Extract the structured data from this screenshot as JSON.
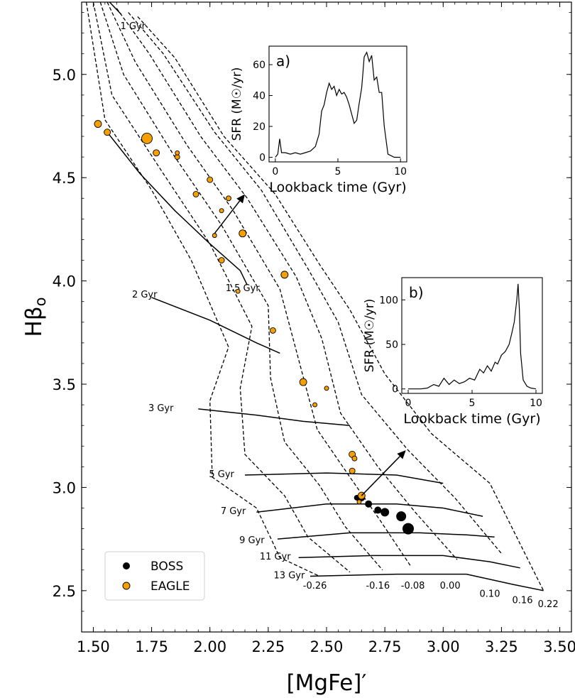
{
  "chart_data": [
    {
      "type": "line",
      "xlabel": "[MgFe]′",
      "ylabel": "Hβo",
      "xlim": [
        1.45,
        3.55
      ],
      "ylim": [
        2.3,
        5.35
      ],
      "x_ticks": [
        "1.50",
        "1.75",
        "2.00",
        "2.25",
        "2.50",
        "2.75",
        "3.00",
        "3.25",
        "3.50"
      ],
      "y_ticks": [
        "2.5",
        "3.0",
        "3.5",
        "4.0",
        "4.5",
        "5.0"
      ],
      "grid": false,
      "legend": {
        "position": "bottom-left",
        "entries": [
          "BOSS",
          "EAGLE"
        ]
      },
      "age_labels": [
        {
          "label": "1 Gyr",
          "x": 1.67,
          "y": 5.22
        },
        {
          "label": "1.5 Gyr",
          "x": 2.14,
          "y": 3.95
        },
        {
          "label": "2 Gyr",
          "x": 1.72,
          "y": 3.92
        },
        {
          "label": "3 Gyr",
          "x": 1.79,
          "y": 3.37
        },
        {
          "label": "5 Gyr",
          "x": 2.05,
          "y": 3.05
        },
        {
          "label": "7 Gyr",
          "x": 2.1,
          "y": 2.87
        },
        {
          "label": "9 Gyr",
          "x": 2.18,
          "y": 2.73
        },
        {
          "label": "11 Gyr",
          "x": 2.28,
          "y": 2.65
        },
        {
          "label": "13 Gyr",
          "x": 2.34,
          "y": 2.56
        }
      ],
      "metallicity_labels": [
        {
          "label": "-0.26",
          "x": 2.45,
          "y": 2.51
        },
        {
          "label": "-0.16",
          "x": 2.72,
          "y": 2.51
        },
        {
          "label": "-0.08",
          "x": 2.87,
          "y": 2.51
        },
        {
          "label": "0.00",
          "x": 3.03,
          "y": 2.51
        },
        {
          "label": "0.10",
          "x": 3.2,
          "y": 2.47
        },
        {
          "label": "0.16",
          "x": 3.34,
          "y": 2.44
        },
        {
          "label": "0.22",
          "x": 3.45,
          "y": 2.42
        }
      ],
      "isochrones": [
        {
          "age": "1.5 Gyr",
          "points": [
            [
              1.56,
              4.72
            ],
            [
              1.7,
              4.52
            ],
            [
              1.85,
              4.34
            ],
            [
              2.0,
              4.18
            ],
            [
              2.13,
              4.05
            ],
            [
              2.16,
              3.98
            ]
          ]
        },
        {
          "age": "2 Gyr",
          "points": [
            [
              1.75,
              3.92
            ],
            [
              2.0,
              3.81
            ],
            [
              2.2,
              3.7
            ],
            [
              2.3,
              3.65
            ]
          ]
        },
        {
          "age": "3 Gyr",
          "points": [
            [
              1.95,
              3.38
            ],
            [
              2.2,
              3.35
            ],
            [
              2.4,
              3.32
            ],
            [
              2.6,
              3.3
            ]
          ]
        },
        {
          "age": "5 Gyr",
          "points": [
            [
              2.15,
              3.06
            ],
            [
              2.5,
              3.07
            ],
            [
              2.8,
              3.06
            ],
            [
              3.0,
              3.02
            ]
          ]
        },
        {
          "age": "7 Gyr",
          "points": [
            [
              2.2,
              2.88
            ],
            [
              2.5,
              2.92
            ],
            [
              2.8,
              2.92
            ],
            [
              3.0,
              2.9
            ],
            [
              3.17,
              2.86
            ]
          ]
        },
        {
          "age": "9 Gyr",
          "points": [
            [
              2.29,
              2.75
            ],
            [
              2.6,
              2.78
            ],
            [
              2.9,
              2.78
            ],
            [
              3.1,
              2.77
            ],
            [
              3.22,
              2.76
            ]
          ]
        },
        {
          "age": "11 Gyr",
          "points": [
            [
              2.38,
              2.66
            ],
            [
              2.7,
              2.67
            ],
            [
              3.0,
              2.67
            ],
            [
              3.2,
              2.64
            ],
            [
              3.33,
              2.61
            ]
          ]
        },
        {
          "age": "13 Gyr",
          "points": [
            [
              2.43,
              2.57
            ],
            [
              2.8,
              2.58
            ],
            [
              3.1,
              2.58
            ],
            [
              3.3,
              2.53
            ],
            [
              3.43,
              2.5
            ]
          ]
        },
        {
          "age": "1 Gyr",
          "points": [
            [
              1.57,
              5.35
            ],
            [
              1.62,
              5.29
            ]
          ]
        }
      ],
      "metallicity_tracks": [
        {
          "z": "-0.26",
          "points": [
            [
              1.47,
              5.35
            ],
            [
              1.55,
              4.78
            ],
            [
              1.75,
              4.44
            ],
            [
              1.92,
              4.1
            ],
            [
              2.08,
              3.68
            ],
            [
              2.0,
              3.42
            ],
            [
              2.01,
              3.05
            ],
            [
              2.2,
              2.9
            ],
            [
              2.3,
              2.66
            ],
            [
              2.47,
              2.57
            ]
          ]
        },
        {
          "z": "-0.16",
          "points": [
            [
              1.5,
              5.35
            ],
            [
              1.58,
              4.9
            ],
            [
              1.8,
              4.52
            ],
            [
              2.0,
              4.18
            ],
            [
              2.18,
              3.78
            ],
            [
              2.13,
              3.48
            ],
            [
              2.15,
              3.16
            ],
            [
              2.32,
              2.96
            ],
            [
              2.42,
              2.76
            ],
            [
              2.6,
              2.59
            ]
          ]
        },
        {
          "z": "-0.08",
          "points": [
            [
              1.53,
              5.35
            ],
            [
              1.63,
              5.0
            ],
            [
              1.85,
              4.6
            ],
            [
              2.05,
              4.27
            ],
            [
              2.25,
              3.88
            ],
            [
              2.26,
              3.53
            ],
            [
              2.32,
              3.22
            ],
            [
              2.47,
              3.01
            ],
            [
              2.58,
              2.81
            ],
            [
              2.74,
              2.6
            ]
          ]
        },
        {
          "z": "0.00",
          "points": [
            [
              1.56,
              5.35
            ],
            [
              1.68,
              5.06
            ],
            [
              1.9,
              4.66
            ],
            [
              2.1,
              4.34
            ],
            [
              2.3,
              3.96
            ],
            [
              2.38,
              3.62
            ],
            [
              2.46,
              3.28
            ],
            [
              2.6,
              3.05
            ],
            [
              2.73,
              2.84
            ],
            [
              2.86,
              2.62
            ]
          ]
        },
        {
          "z": "0.10",
          "points": [
            [
              1.6,
              5.32
            ],
            [
              1.74,
              5.1
            ],
            [
              1.96,
              4.7
            ],
            [
              2.16,
              4.4
            ],
            [
              2.37,
              4.02
            ],
            [
              2.48,
              3.72
            ],
            [
              2.56,
              3.36
            ],
            [
              2.72,
              3.1
            ],
            [
              2.88,
              2.88
            ],
            [
              3.06,
              2.65
            ]
          ]
        },
        {
          "z": "0.16",
          "points": [
            [
              1.65,
              5.3
            ],
            [
              1.8,
              5.1
            ],
            [
              2.02,
              4.72
            ],
            [
              2.22,
              4.44
            ],
            [
              2.42,
              4.06
            ],
            [
              2.55,
              3.8
            ],
            [
              2.65,
              3.45
            ],
            [
              2.85,
              3.18
            ],
            [
              3.05,
              2.95
            ],
            [
              3.25,
              2.68
            ]
          ]
        },
        {
          "z": "0.22",
          "points": [
            [
              1.69,
              5.28
            ],
            [
              1.85,
              5.08
            ],
            [
              2.06,
              4.7
            ],
            [
              2.28,
              4.42
            ],
            [
              2.47,
              4.08
            ],
            [
              2.6,
              3.86
            ],
            [
              2.75,
              3.55
            ],
            [
              2.95,
              3.26
            ],
            [
              3.2,
              3.02
            ],
            [
              3.43,
              2.5
            ]
          ]
        }
      ],
      "series": [
        {
          "name": "BOSS",
          "color": "#000000",
          "points": [
            {
              "x": 2.63,
              "y": 2.95,
              "size": 4
            },
            {
              "x": 2.65,
              "y": 2.95,
              "size": 5
            },
            {
              "x": 2.68,
              "y": 2.92,
              "size": 5
            },
            {
              "x": 2.72,
              "y": 2.89,
              "size": 5
            },
            {
              "x": 2.75,
              "y": 2.88,
              "size": 6
            },
            {
              "x": 2.82,
              "y": 2.86,
              "size": 7
            },
            {
              "x": 2.85,
              "y": 2.8,
              "size": 8
            }
          ]
        },
        {
          "name": "EAGLE",
          "color": "#f5a000",
          "points": [
            {
              "x": 1.52,
              "y": 4.76,
              "size": 5
            },
            {
              "x": 1.56,
              "y": 4.72,
              "size": 4.5
            },
            {
              "x": 1.73,
              "y": 4.69,
              "size": 7.5
            },
            {
              "x": 1.77,
              "y": 4.62,
              "size": 4.5
            },
            {
              "x": 1.86,
              "y": 4.6,
              "size": 3.5
            },
            {
              "x": 1.86,
              "y": 4.62,
              "size": 3
            },
            {
              "x": 2.0,
              "y": 4.49,
              "size": 4
            },
            {
              "x": 1.94,
              "y": 4.42,
              "size": 4
            },
            {
              "x": 2.08,
              "y": 4.4,
              "size": 3.5
            },
            {
              "x": 2.05,
              "y": 4.34,
              "size": 3
            },
            {
              "x": 2.02,
              "y": 4.22,
              "size": 3
            },
            {
              "x": 2.14,
              "y": 4.23,
              "size": 5
            },
            {
              "x": 2.05,
              "y": 4.1,
              "size": 4
            },
            {
              "x": 2.32,
              "y": 4.03,
              "size": 5
            },
            {
              "x": 2.12,
              "y": 3.95,
              "size": 3
            },
            {
              "x": 2.27,
              "y": 3.76,
              "size": 4
            },
            {
              "x": 2.4,
              "y": 3.51,
              "size": 5
            },
            {
              "x": 2.5,
              "y": 3.48,
              "size": 3
            },
            {
              "x": 2.45,
              "y": 3.4,
              "size": 3
            },
            {
              "x": 2.61,
              "y": 3.16,
              "size": 4.5
            },
            {
              "x": 2.62,
              "y": 3.14,
              "size": 3.5
            },
            {
              "x": 2.61,
              "y": 3.08,
              "size": 4
            },
            {
              "x": 2.65,
              "y": 2.96,
              "size": 5
            },
            {
              "x": 2.64,
              "y": 2.93,
              "size": 3
            }
          ]
        }
      ],
      "arrows": [
        {
          "from": [
            2.02,
            4.23
          ],
          "to": [
            2.15,
            4.42
          ]
        },
        {
          "from": [
            2.65,
            2.96
          ],
          "to": [
            2.84,
            3.18
          ]
        }
      ]
    },
    {
      "type": "line",
      "panel_label": "a)",
      "xlabel": "Lookback time (Gyr)",
      "ylabel": "SFR (M☉/yr)",
      "xlim": [
        -0.5,
        10.5
      ],
      "ylim": [
        -3,
        72
      ],
      "x_ticks": [
        "0",
        "5",
        "10"
      ],
      "y_ticks": [
        "0",
        "20",
        "40",
        "60"
      ],
      "series": [
        {
          "values_x": [
            0,
            0.2,
            0.35,
            0.5,
            0.8,
            1.2,
            1.6,
            2.0,
            2.4,
            2.8,
            3.2,
            3.5,
            3.7,
            3.9,
            4.1,
            4.3,
            4.5,
            4.7,
            4.9,
            5.1,
            5.3,
            5.5,
            5.7,
            5.9,
            6.1,
            6.3,
            6.5,
            6.7,
            6.9,
            7.0,
            7.1,
            7.3,
            7.5,
            7.7,
            7.9,
            8.1,
            8.3,
            8.5,
            8.7,
            9.0,
            9.5,
            10.0
          ],
          "values_y": [
            0,
            2,
            12,
            3,
            3,
            2,
            3,
            2,
            3,
            4,
            7,
            15,
            30,
            34,
            42,
            48,
            44,
            46,
            40,
            44,
            41,
            42,
            39,
            34,
            28,
            22,
            24,
            35,
            45,
            55,
            65,
            68,
            62,
            66,
            50,
            52,
            42,
            42,
            20,
            2,
            0,
            0
          ]
        }
      ]
    },
    {
      "type": "line",
      "panel_label": "b)",
      "xlabel": "Lookback time (Gyr)",
      "ylabel": "SFR (M☉/yr)",
      "xlim": [
        -0.5,
        10.5
      ],
      "ylim": [
        -5,
        125
      ],
      "x_ticks": [
        "0",
        "5",
        "10"
      ],
      "y_ticks": [
        "0",
        "50",
        "100"
      ],
      "series": [
        {
          "values_x": [
            0,
            0.5,
            1,
            1.5,
            2,
            2.4,
            2.8,
            3.2,
            3.6,
            4.0,
            4.4,
            4.8,
            5.2,
            5.6,
            5.9,
            6.2,
            6.5,
            6.8,
            7.0,
            7.3,
            7.6,
            7.9,
            8.1,
            8.3,
            8.5,
            8.6,
            8.7,
            8.8,
            9.0,
            9.3,
            9.6,
            10.0
          ],
          "values_y": [
            0,
            0,
            0,
            1,
            5,
            3,
            12,
            5,
            10,
            6,
            8,
            12,
            10,
            22,
            18,
            26,
            20,
            30,
            28,
            38,
            42,
            50,
            62,
            75,
            100,
            118,
            90,
            40,
            10,
            3,
            1,
            0
          ]
        }
      ]
    }
  ]
}
